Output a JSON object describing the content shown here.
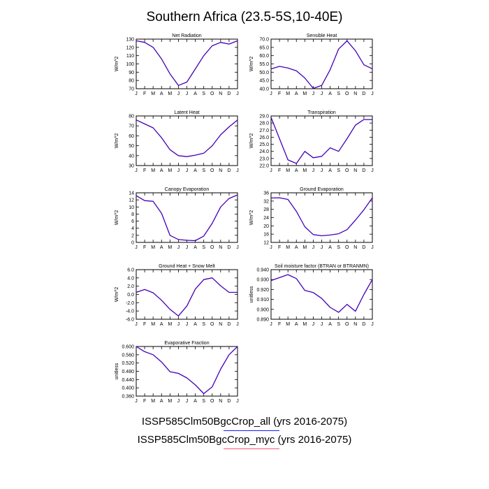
{
  "title": "Southern Africa (23.5-5S,10-40E)",
  "month_labels": [
    "J",
    "F",
    "M",
    "A",
    "M",
    "J",
    "J",
    "A",
    "S",
    "O",
    "N",
    "D",
    "J"
  ],
  "legend": [
    {
      "label": "ISSP585Clm50BgcCrop_all (yrs 2016-2075)",
      "color": "#1a1aff"
    },
    {
      "label": "ISSP585Clm50BgcCrop_myc (yrs 2016-2075)",
      "color": "#ff5577"
    }
  ],
  "series_colors": {
    "all": "#1a1aff",
    "myc": "#ff5577",
    "overlap": "#4400b8"
  },
  "chart_data": [
    {
      "type": "line",
      "title": "Net Radiation",
      "ylabel": "W/m^2",
      "ylim": [
        70,
        130
      ],
      "yticks": [
        "70",
        "80",
        "90",
        "100",
        "110",
        "120",
        "130"
      ],
      "x": [
        "J",
        "F",
        "M",
        "A",
        "M",
        "J",
        "J",
        "A",
        "S",
        "O",
        "N",
        "D",
        "J"
      ],
      "series": [
        {
          "values": [
            128,
            126,
            120,
            106,
            88,
            74,
            78,
            94,
            110,
            122,
            126,
            124,
            128
          ]
        }
      ]
    },
    {
      "type": "line",
      "title": "Sensible Heat",
      "ylabel": "W/m^2",
      "ylim": [
        40,
        70
      ],
      "yticks": [
        "40.0",
        "45.0",
        "50.0",
        "55.0",
        "60.0",
        "65.0",
        "70.0"
      ],
      "x": [
        "J",
        "F",
        "M",
        "A",
        "M",
        "J",
        "J",
        "A",
        "S",
        "O",
        "N",
        "D",
        "J"
      ],
      "series": [
        {
          "values": [
            52,
            53.5,
            52.5,
            50.8,
            46.5,
            40.2,
            42,
            51.5,
            64,
            69,
            63,
            54.5,
            52
          ]
        }
      ]
    },
    {
      "type": "line",
      "title": "Latent Heat",
      "ylabel": "W/m^2",
      "ylim": [
        30,
        80
      ],
      "yticks": [
        "30",
        "40",
        "50",
        "60",
        "70",
        "80"
      ],
      "x": [
        "J",
        "F",
        "M",
        "A",
        "M",
        "J",
        "J",
        "A",
        "S",
        "O",
        "N",
        "D",
        "J"
      ],
      "series": [
        {
          "values": [
            76,
            72,
            68,
            58,
            46,
            40,
            39,
            40.5,
            42.5,
            50,
            61,
            69,
            76
          ]
        }
      ]
    },
    {
      "type": "line",
      "title": "Transpiration",
      "ylabel": "W/m^2",
      "ylim": [
        22,
        29
      ],
      "yticks": [
        "22.0",
        "23.0",
        "24.0",
        "25.0",
        "26.0",
        "27.0",
        "28.0",
        "29.0"
      ],
      "x": [
        "J",
        "F",
        "M",
        "A",
        "M",
        "J",
        "J",
        "A",
        "S",
        "O",
        "N",
        "D",
        "J"
      ],
      "series": [
        {
          "values": [
            28.8,
            25.8,
            22.8,
            22.3,
            24.0,
            23.1,
            23.3,
            24.5,
            24.0,
            25.8,
            27.7,
            28.5,
            28.5
          ]
        }
      ]
    },
    {
      "type": "line",
      "title": "Canopy Evaporation",
      "ylabel": "W/m^2",
      "ylim": [
        0,
        14
      ],
      "yticks": [
        "0",
        "2",
        "4",
        "6",
        "8",
        "10",
        "12",
        "14"
      ],
      "x": [
        "J",
        "F",
        "M",
        "A",
        "M",
        "J",
        "J",
        "A",
        "S",
        "O",
        "N",
        "D",
        "J"
      ],
      "series": [
        {
          "values": [
            13.2,
            11.8,
            11.6,
            8.2,
            2.0,
            0.8,
            0.6,
            0.5,
            1.8,
            5.4,
            10.0,
            12.4,
            13.4
          ]
        }
      ]
    },
    {
      "type": "line",
      "title": "Ground Evaporation",
      "ylabel": "W/m^2",
      "ylim": [
        12,
        36
      ],
      "yticks": [
        "12",
        "16",
        "20",
        "24",
        "28",
        "32",
        "36"
      ],
      "x": [
        "J",
        "F",
        "M",
        "A",
        "M",
        "J",
        "J",
        "A",
        "S",
        "O",
        "N",
        "D",
        "J"
      ],
      "series": [
        {
          "values": [
            33.5,
            33.6,
            32.8,
            27.0,
            19.6,
            15.8,
            15.2,
            15.6,
            16.2,
            18.2,
            22.8,
            27.8,
            33.6
          ]
        }
      ]
    },
    {
      "type": "line",
      "title": "Ground Heat + Snow Melt",
      "ylabel": "W/m^2",
      "ylim": [
        -6,
        6
      ],
      "yticks": [
        "-6.0",
        "-4.0",
        "-2.0",
        "0.0",
        "2.0",
        "4.0",
        "6.0"
      ],
      "x": [
        "J",
        "F",
        "M",
        "A",
        "M",
        "J",
        "J",
        "A",
        "S",
        "O",
        "N",
        "D",
        "J"
      ],
      "series": [
        {
          "values": [
            0.5,
            1.2,
            0.4,
            -1.4,
            -3.6,
            -5.2,
            -2.8,
            1.3,
            3.6,
            4.0,
            2.1,
            0.5,
            0.5
          ]
        }
      ]
    },
    {
      "type": "line",
      "title": "Soil moisture factor (BTRAN or BTRANMN)",
      "ylabel": "unitless",
      "ylim": [
        0.89,
        0.94
      ],
      "yticks": [
        "0.890",
        "0.900",
        "0.910",
        "0.920",
        "0.930",
        "0.940"
      ],
      "x": [
        "J",
        "F",
        "M",
        "A",
        "M",
        "J",
        "J",
        "A",
        "S",
        "O",
        "N",
        "D",
        "J"
      ],
      "series": [
        {
          "values": [
            0.929,
            0.932,
            0.935,
            0.931,
            0.919,
            0.917,
            0.911,
            0.902,
            0.897,
            0.905,
            0.898,
            0.915,
            0.93
          ]
        }
      ]
    },
    {
      "type": "line",
      "title": "Evaporative Fraction",
      "ylabel": "unitless",
      "ylim": [
        0.36,
        0.6
      ],
      "yticks": [
        "0.360",
        "0.400",
        "0.440",
        "0.480",
        "0.520",
        "0.560",
        "0.600"
      ],
      "x": [
        "J",
        "F",
        "M",
        "A",
        "M",
        "J",
        "J",
        "A",
        "S",
        "O",
        "N",
        "D",
        "J"
      ],
      "series": [
        {
          "values": [
            0.6,
            0.575,
            0.56,
            0.525,
            0.478,
            0.47,
            0.448,
            0.414,
            0.372,
            0.405,
            0.49,
            0.56,
            0.6
          ]
        }
      ]
    }
  ]
}
